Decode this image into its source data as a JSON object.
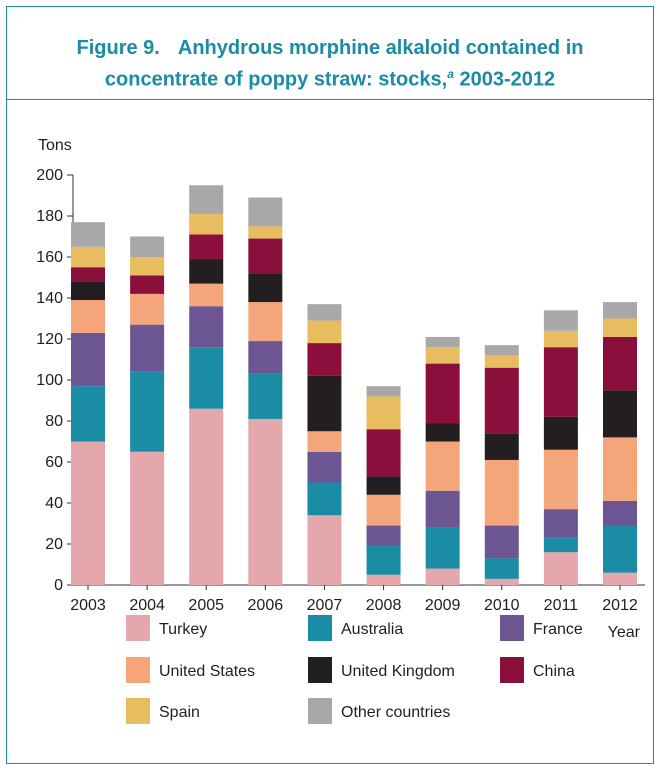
{
  "figure": {
    "label": "Figure 9.",
    "title_line1": "Anhydrous morphine alkaloid contained in",
    "title_line2_pre": "concentrate of poppy straw: stocks,",
    "title_sup": "a",
    "title_line2_post": " 2003-2012"
  },
  "chart_data": {
    "type": "bar",
    "stacked": true,
    "ylabel": "Tons",
    "xlabel": "Year",
    "ylim": [
      0,
      200
    ],
    "yticks": [
      0,
      20,
      40,
      60,
      80,
      100,
      120,
      140,
      160,
      180,
      200
    ],
    "categories": [
      "2003",
      "2004",
      "2005",
      "2006",
      "2007",
      "2008",
      "2009",
      "2010",
      "2011",
      "2012"
    ],
    "series": [
      {
        "name": "Turkey",
        "color": "#e3a7ac",
        "values": [
          70,
          65,
          86,
          81,
          34,
          5,
          8,
          3,
          16,
          6
        ]
      },
      {
        "name": "Australia",
        "color": "#1a8ca3",
        "values": [
          27,
          39,
          30,
          22,
          16,
          14,
          20,
          10,
          7,
          23
        ]
      },
      {
        "name": "France",
        "color": "#6b5592",
        "values": [
          26,
          23,
          20,
          16,
          15,
          10,
          18,
          16,
          14,
          12
        ]
      },
      {
        "name": "United States",
        "color": "#f5a57a",
        "values": [
          16,
          15,
          11,
          19,
          10,
          15,
          24,
          32,
          29,
          31
        ]
      },
      {
        "name": "United Kingdom",
        "color": "#231f20",
        "values": [
          9,
          0,
          12,
          14,
          27,
          9,
          9,
          13,
          16,
          23
        ]
      },
      {
        "name": "China",
        "color": "#8b0f3c",
        "values": [
          7,
          9,
          12,
          17,
          16,
          23,
          29,
          32,
          34,
          26
        ]
      },
      {
        "name": "Spain",
        "color": "#e8bd5f",
        "values": [
          10,
          9,
          10,
          6,
          11,
          16,
          8,
          6,
          8,
          9
        ]
      },
      {
        "name": "Other countries",
        "color": "#a8a8ab",
        "values": [
          12,
          10,
          14,
          14,
          8,
          5,
          5,
          5,
          10,
          8
        ]
      }
    ],
    "legend_position": "bottom",
    "grid": false
  }
}
